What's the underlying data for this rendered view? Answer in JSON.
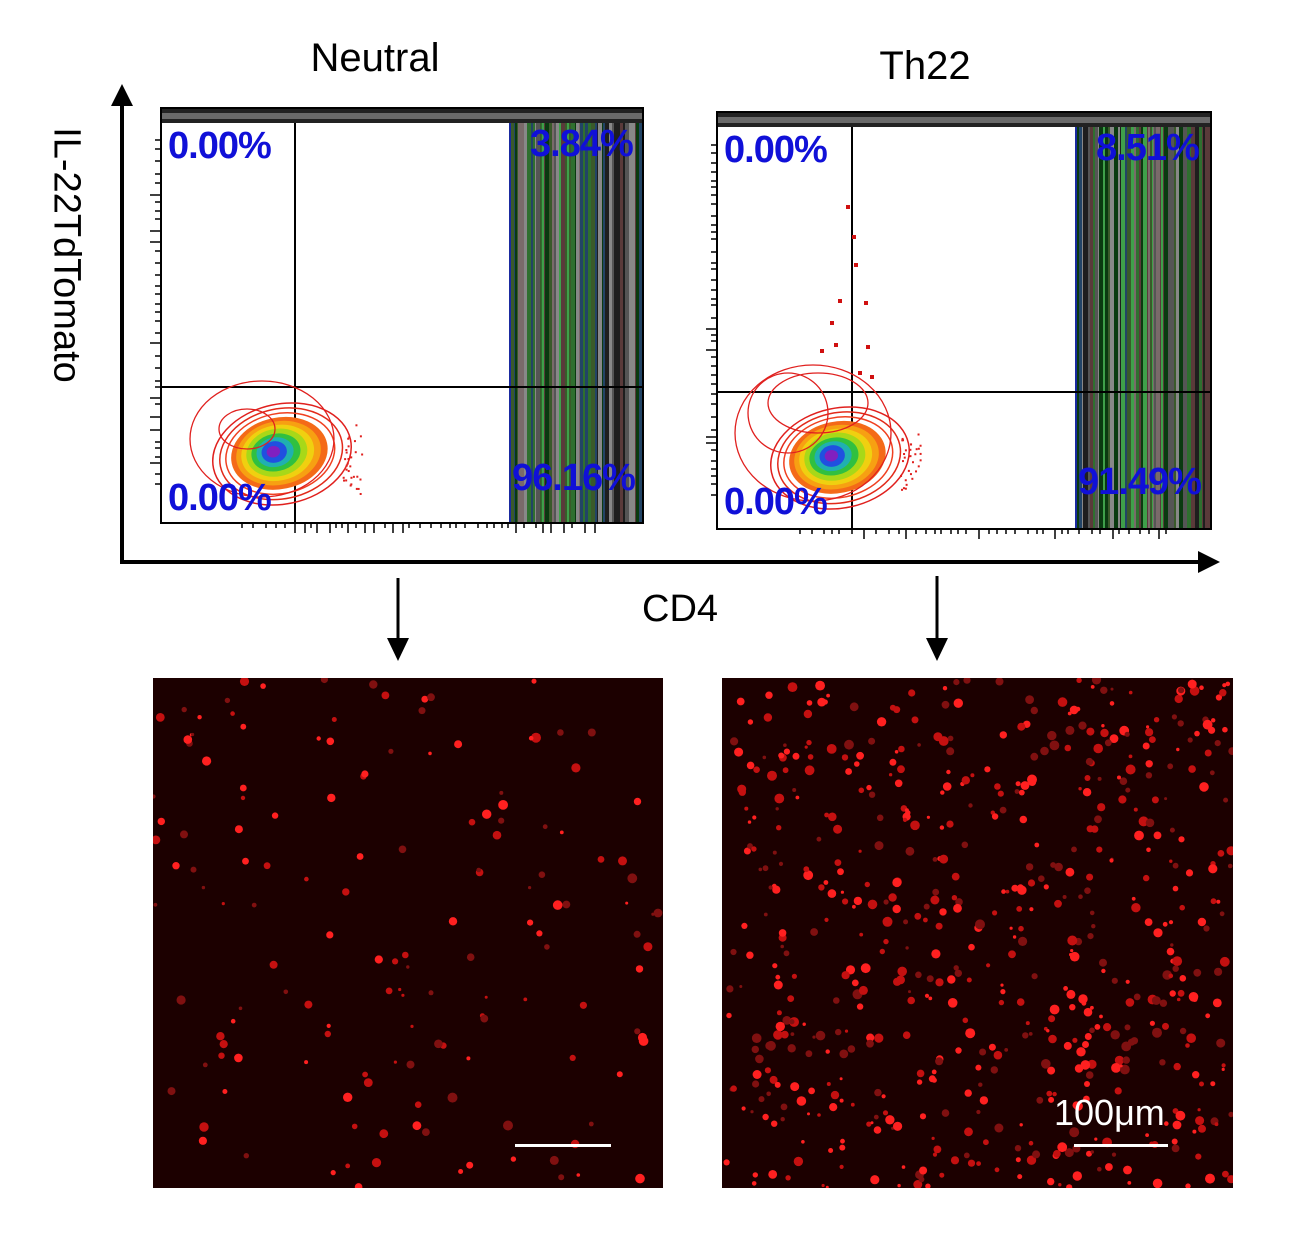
{
  "figure": {
    "panels": [
      {
        "title": "Neutral"
      },
      {
        "title": "Th22"
      }
    ],
    "xlabel": "CD4",
    "ylabel": "IL-22TdTomato",
    "scale_bar_label": "100μm",
    "colors": {
      "quadrant_text": "#1010d8",
      "fluorescence": "#ff1a1a",
      "micrograph_background": "#1c0000"
    }
  },
  "chart_data": [
    {
      "type": "scatter",
      "title": "Neutral",
      "xlabel": "CD4",
      "ylabel": "IL-22TdTomato",
      "xscale": "log",
      "yscale": "log",
      "quadrants": {
        "upper_left": "0.00%",
        "upper_right": "3.84%",
        "lower_left": "0.00%",
        "lower_right": "96.16%"
      }
    },
    {
      "type": "scatter",
      "title": "Th22",
      "xlabel": "CD4",
      "ylabel": "IL-22TdTomato",
      "xscale": "log",
      "yscale": "log",
      "quadrants": {
        "upper_left": "0.00%",
        "upper_right": "8.51%",
        "lower_left": "0.00%",
        "lower_right": "91.49%"
      }
    }
  ]
}
